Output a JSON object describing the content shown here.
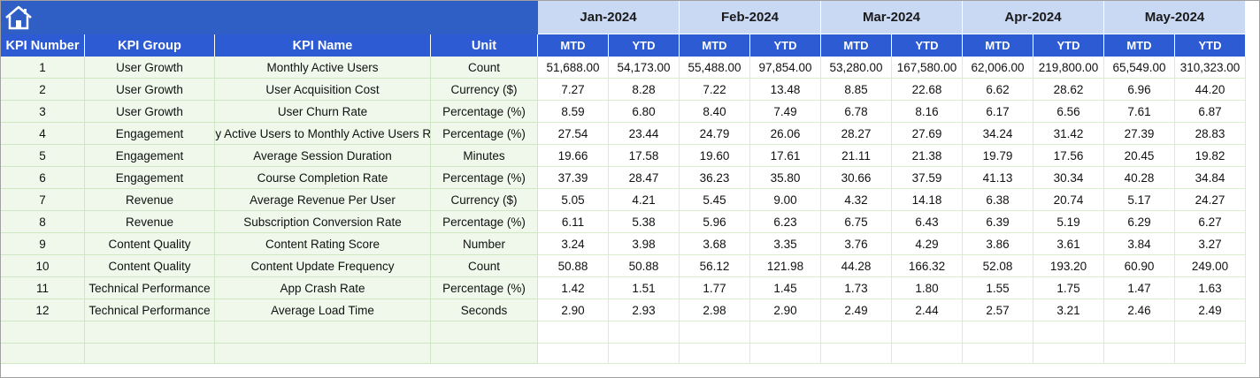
{
  "header": {
    "months": [
      "Jan-2024",
      "Feb-2024",
      "Mar-2024",
      "Apr-2024",
      "May-2024"
    ],
    "subheaders": [
      "MTD",
      "YTD",
      "MTD",
      "YTD",
      "MTD",
      "YTD",
      "MTD",
      "YTD",
      "MTD",
      "YTD"
    ],
    "columns": [
      "KPI Number",
      "KPI Group",
      "KPI Name",
      "Unit"
    ]
  },
  "table": {
    "rows": [
      {
        "kpi_number": 1,
        "group": "User Growth",
        "name": "Monthly Active Users",
        "unit": "Count",
        "values": [
          "51,688.00",
          "54,173.00",
          "55,488.00",
          "97,854.00",
          "53,280.00",
          "167,580.00",
          "62,006.00",
          "219,800.00",
          "65,549.00",
          "310,323.00"
        ]
      },
      {
        "kpi_number": 2,
        "group": "User Growth",
        "name": "User Acquisition Cost",
        "unit": "Currency ($)",
        "values": [
          "7.27",
          "8.28",
          "7.22",
          "13.48",
          "8.85",
          "22.68",
          "6.62",
          "28.62",
          "6.96",
          "44.20"
        ]
      },
      {
        "kpi_number": 3,
        "group": "User Growth",
        "name": "User Churn Rate",
        "unit": "Percentage (%)",
        "values": [
          "8.59",
          "6.80",
          "8.40",
          "7.49",
          "6.78",
          "8.16",
          "6.17",
          "6.56",
          "7.61",
          "6.87"
        ]
      },
      {
        "kpi_number": 4,
        "group": "Engagement",
        "name": "Daily Active Users to Monthly Active Users Ratio",
        "unit": "Percentage (%)",
        "values": [
          "27.54",
          "23.44",
          "24.79",
          "26.06",
          "28.27",
          "27.69",
          "34.24",
          "31.42",
          "27.39",
          "28.83"
        ]
      },
      {
        "kpi_number": 5,
        "group": "Engagement",
        "name": "Average Session Duration",
        "unit": "Minutes",
        "values": [
          "19.66",
          "17.58",
          "19.60",
          "17.61",
          "21.11",
          "21.38",
          "19.79",
          "17.56",
          "20.45",
          "19.82"
        ]
      },
      {
        "kpi_number": 6,
        "group": "Engagement",
        "name": "Course Completion Rate",
        "unit": "Percentage (%)",
        "values": [
          "37.39",
          "28.47",
          "36.23",
          "35.80",
          "30.66",
          "37.59",
          "41.13",
          "30.34",
          "40.28",
          "34.84"
        ]
      },
      {
        "kpi_number": 7,
        "group": "Revenue",
        "name": "Average Revenue Per User",
        "unit": "Currency ($)",
        "values": [
          "5.05",
          "4.21",
          "5.45",
          "9.00",
          "4.32",
          "14.18",
          "6.38",
          "20.74",
          "5.17",
          "24.27"
        ]
      },
      {
        "kpi_number": 8,
        "group": "Revenue",
        "name": "Subscription Conversion Rate",
        "unit": "Percentage (%)",
        "values": [
          "6.11",
          "5.38",
          "5.96",
          "6.23",
          "6.75",
          "6.43",
          "6.39",
          "5.19",
          "6.29",
          "6.27"
        ]
      },
      {
        "kpi_number": 9,
        "group": "Content Quality",
        "name": "Content Rating Score",
        "unit": "Number",
        "values": [
          "3.24",
          "3.98",
          "3.68",
          "3.35",
          "3.76",
          "4.29",
          "3.86",
          "3.61",
          "3.84",
          "3.27"
        ]
      },
      {
        "kpi_number": 10,
        "group": "Content Quality",
        "name": "Content Update Frequency",
        "unit": "Count",
        "values": [
          "50.88",
          "50.88",
          "56.12",
          "121.98",
          "44.28",
          "166.32",
          "52.08",
          "193.20",
          "60.90",
          "249.00"
        ]
      },
      {
        "kpi_number": 11,
        "group": "Technical Performance",
        "name": "App Crash Rate",
        "unit": "Percentage (%)",
        "values": [
          "1.42",
          "1.51",
          "1.77",
          "1.45",
          "1.73",
          "1.80",
          "1.55",
          "1.75",
          "1.47",
          "1.63"
        ]
      },
      {
        "kpi_number": 12,
        "group": "Technical Performance",
        "name": "Average Load Time",
        "unit": "Seconds",
        "values": [
          "2.90",
          "2.93",
          "2.98",
          "2.90",
          "2.49",
          "2.44",
          "2.57",
          "3.21",
          "2.46",
          "2.49"
        ]
      }
    ]
  }
}
